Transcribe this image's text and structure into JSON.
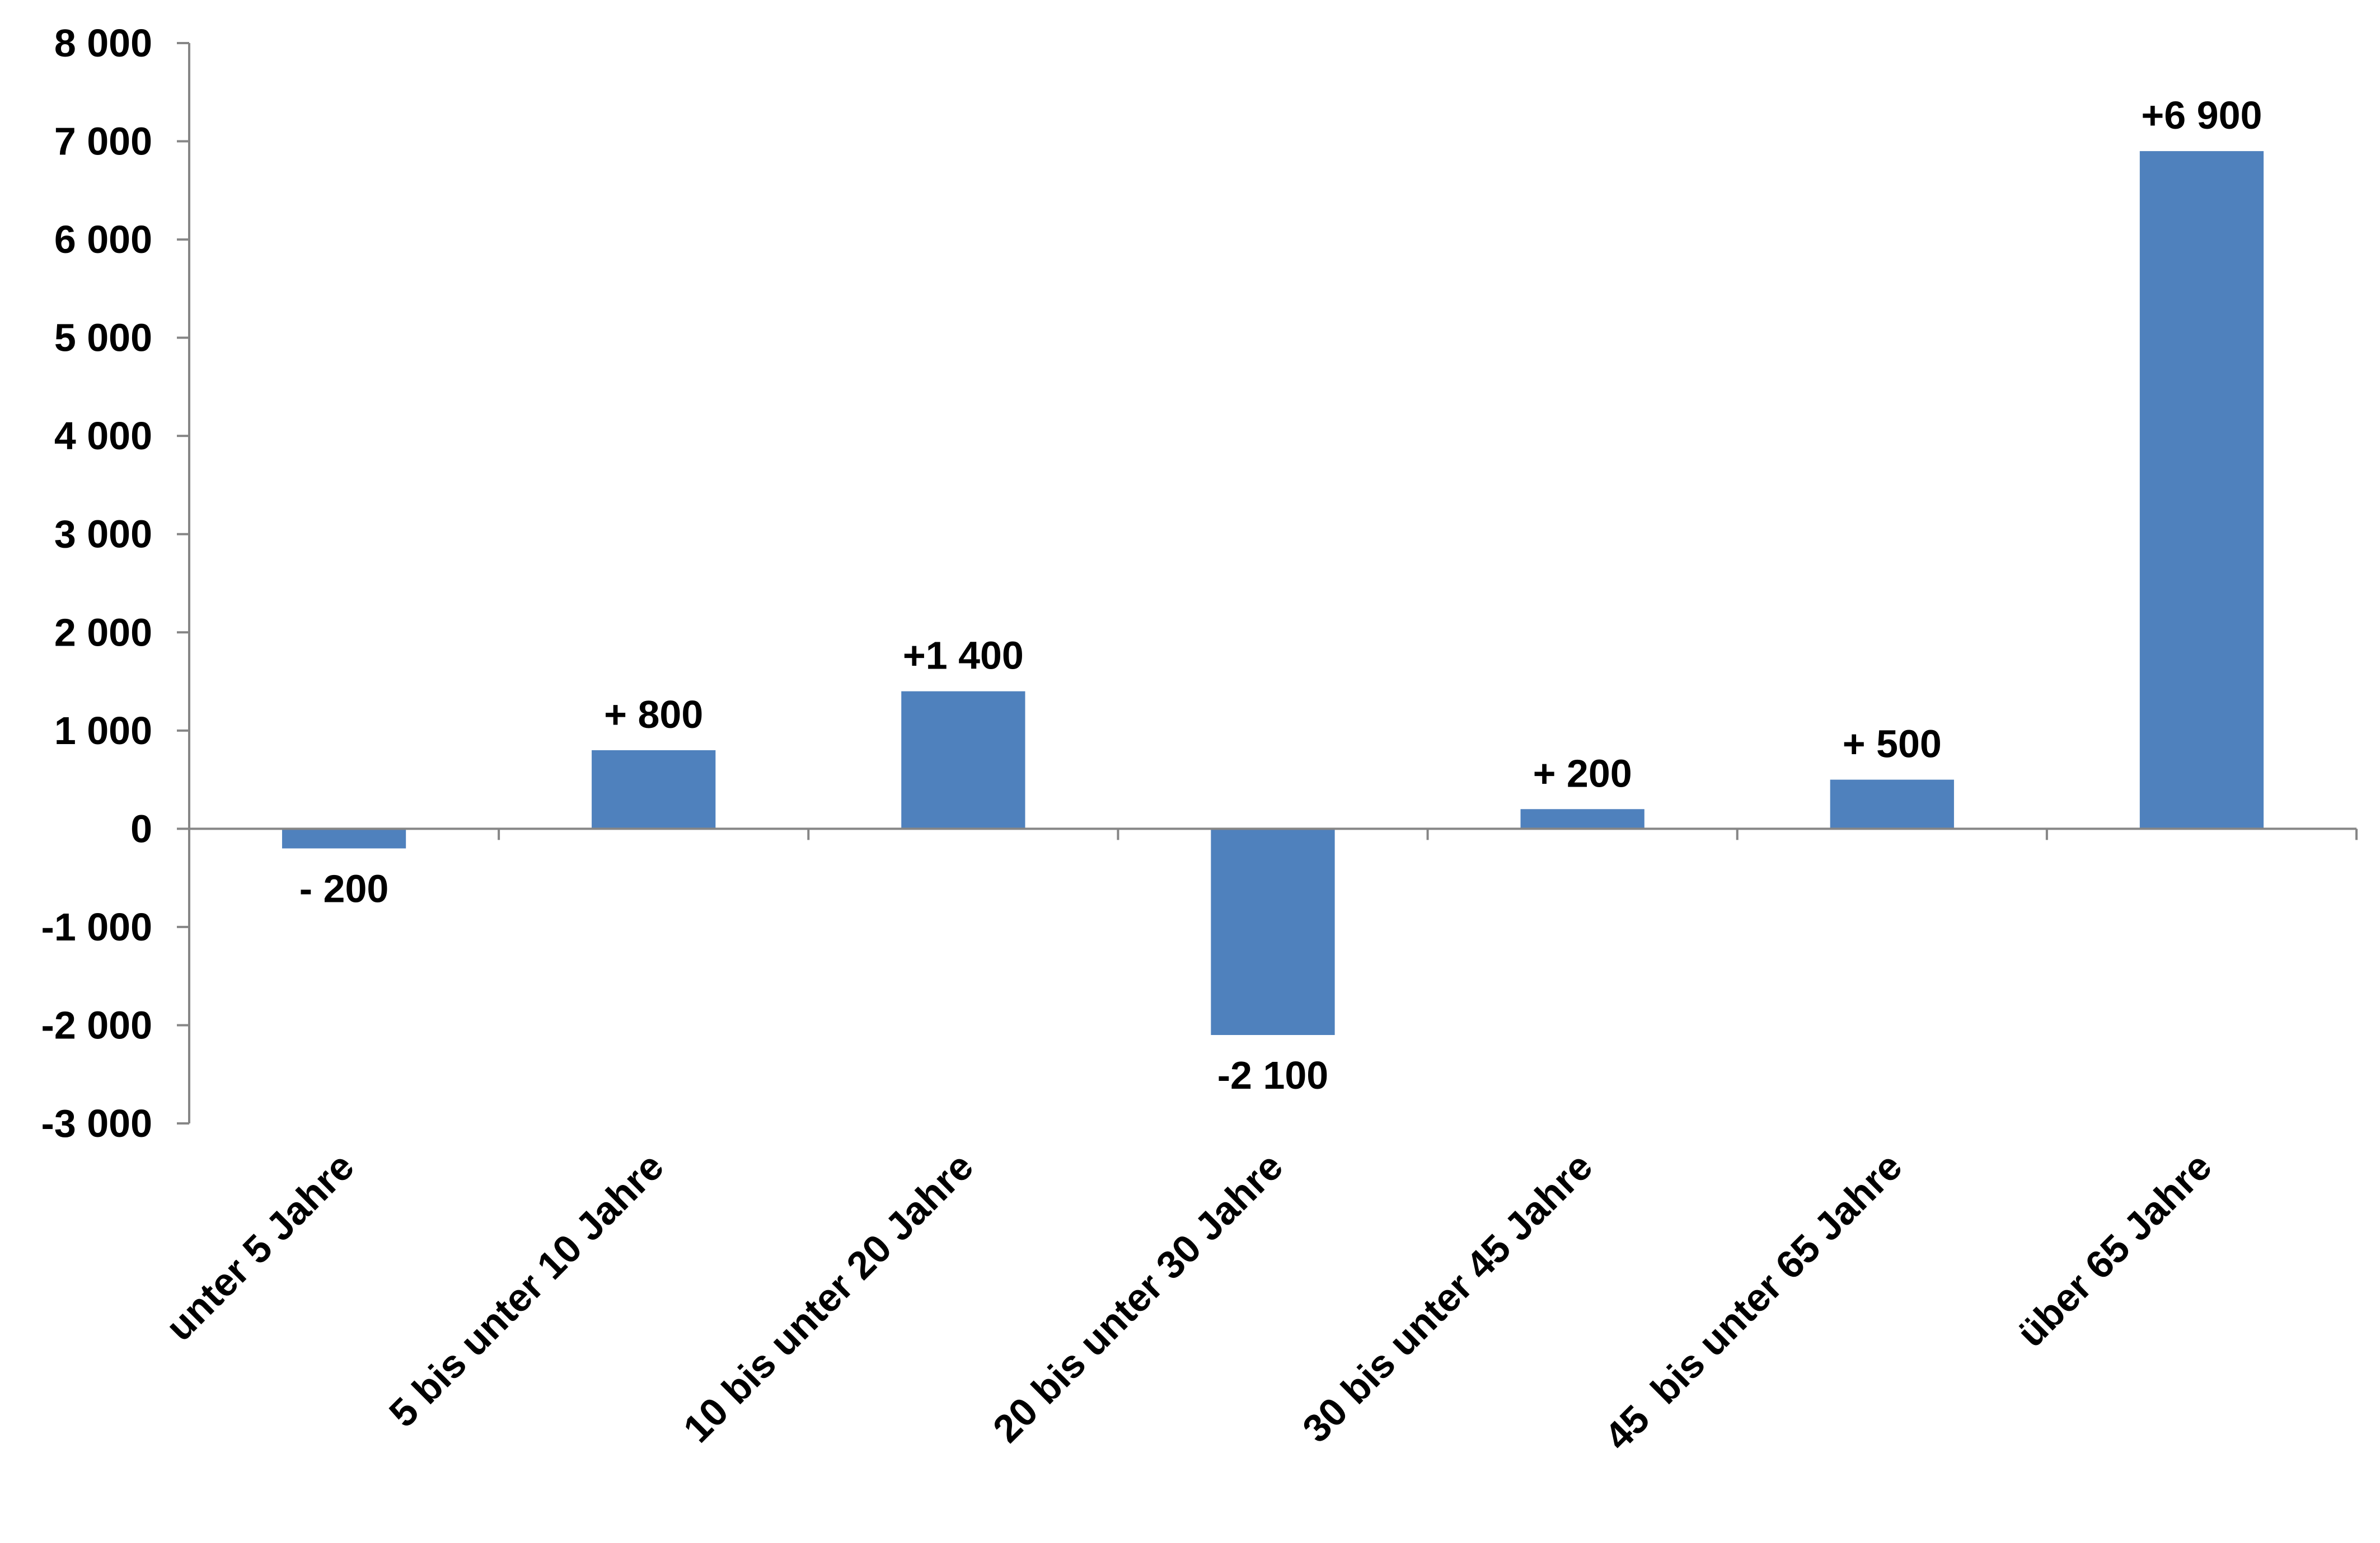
{
  "chart_data": {
    "type": "bar",
    "title": "",
    "xlabel": "",
    "ylabel": "",
    "categories": [
      "unter 5 Jahre",
      "5 bis unter 10 Jahre",
      "10 bis unter 20 Jahre",
      "20 bis unter 30 Jahre",
      "30 bis unter 45 Jahre",
      "45  bis unter 65 Jahre",
      "über 65 Jahre"
    ],
    "values": [
      -200,
      800,
      1400,
      -2100,
      200,
      500,
      6900
    ],
    "data_labels": [
      "- 200",
      "+ 800",
      "+1 400",
      "-2 100",
      "+ 200",
      "+ 500",
      "+6 900"
    ],
    "ylim": [
      -3000,
      8000
    ],
    "y_ticks": [
      8000,
      7000,
      6000,
      5000,
      4000,
      3000,
      2000,
      1000,
      0,
      -1000,
      -2000,
      -3000
    ],
    "y_tick_labels": [
      "8 000",
      "7 000",
      "6 000",
      "5 000",
      "4 000",
      "3 000",
      "2 000",
      "1 000",
      "0",
      "-1 000",
      "-2 000",
      "-3 000"
    ],
    "grid": false,
    "legend": "none",
    "bar_color": "#4F81BD",
    "axis_color": "#868686"
  }
}
